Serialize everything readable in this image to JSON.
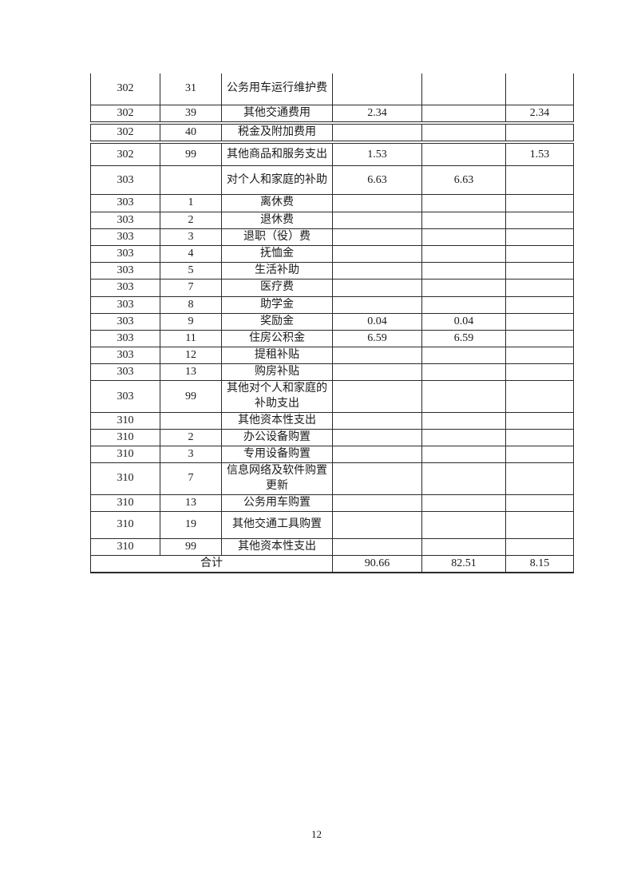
{
  "page": {
    "number": "12"
  },
  "table": {
    "rows": [
      {
        "code": "302",
        "sub": "31",
        "name": "公务用车运行维护费",
        "v1": "",
        "v2": "",
        "v3": ""
      },
      {
        "code": "302",
        "sub": "39",
        "name": "其他交通费用",
        "v1": "2.34",
        "v2": "",
        "v3": "2.34"
      },
      {
        "code": "302",
        "sub": "40",
        "name": "税金及附加费用",
        "v1": "",
        "v2": "",
        "v3": ""
      },
      {
        "code": "302",
        "sub": "99",
        "name": "其他商品和服务支出",
        "v1": "1.53",
        "v2": "",
        "v3": "1.53"
      },
      {
        "code": "303",
        "sub": "",
        "name": "对个人和家庭的补助",
        "v1": "6.63",
        "v2": "6.63",
        "v3": ""
      },
      {
        "code": "303",
        "sub": "1",
        "name": "离休费",
        "v1": "",
        "v2": "",
        "v3": ""
      },
      {
        "code": "303",
        "sub": "2",
        "name": "退休费",
        "v1": "",
        "v2": "",
        "v3": ""
      },
      {
        "code": "303",
        "sub": "3",
        "name": "退职（役）费",
        "v1": "",
        "v2": "",
        "v3": ""
      },
      {
        "code": "303",
        "sub": "4",
        "name": "抚恤金",
        "v1": "",
        "v2": "",
        "v3": ""
      },
      {
        "code": "303",
        "sub": "5",
        "name": "生活补助",
        "v1": "",
        "v2": "",
        "v3": ""
      },
      {
        "code": "303",
        "sub": "7",
        "name": "医疗费",
        "v1": "",
        "v2": "",
        "v3": ""
      },
      {
        "code": "303",
        "sub": "8",
        "name": "助学金",
        "v1": "",
        "v2": "",
        "v3": ""
      },
      {
        "code": "303",
        "sub": "9",
        "name": "奖励金",
        "v1": "0.04",
        "v2": "0.04",
        "v3": ""
      },
      {
        "code": "303",
        "sub": "11",
        "name": "住房公积金",
        "v1": "6.59",
        "v2": "6.59",
        "v3": ""
      },
      {
        "code": "303",
        "sub": "12",
        "name": "提租补贴",
        "v1": "",
        "v2": "",
        "v3": ""
      },
      {
        "code": "303",
        "sub": "13",
        "name": "购房补贴",
        "v1": "",
        "v2": "",
        "v3": ""
      },
      {
        "code": "303",
        "sub": "99",
        "name": "其他对个人和家庭的补助支出",
        "v1": "",
        "v2": "",
        "v3": ""
      },
      {
        "code": "310",
        "sub": "",
        "name": "其他资本性支出",
        "v1": "",
        "v2": "",
        "v3": ""
      },
      {
        "code": "310",
        "sub": "2",
        "name": "办公设备购置",
        "v1": "",
        "v2": "",
        "v3": ""
      },
      {
        "code": "310",
        "sub": "3",
        "name": "专用设备购置",
        "v1": "",
        "v2": "",
        "v3": ""
      },
      {
        "code": "310",
        "sub": "7",
        "name": "信息网络及软件购置更新",
        "v1": "",
        "v2": "",
        "v3": ""
      },
      {
        "code": "310",
        "sub": "13",
        "name": "公务用车购置",
        "v1": "",
        "v2": "",
        "v3": ""
      },
      {
        "code": "310",
        "sub": "19",
        "name": "其他交通工具购置",
        "v1": "",
        "v2": "",
        "v3": ""
      },
      {
        "code": "310",
        "sub": "99",
        "name": "其他资本性支出",
        "v1": "",
        "v2": "",
        "v3": ""
      }
    ],
    "total": {
      "label": "合计",
      "v1": "90.66",
      "v2": "82.51",
      "v3": "8.15"
    }
  }
}
